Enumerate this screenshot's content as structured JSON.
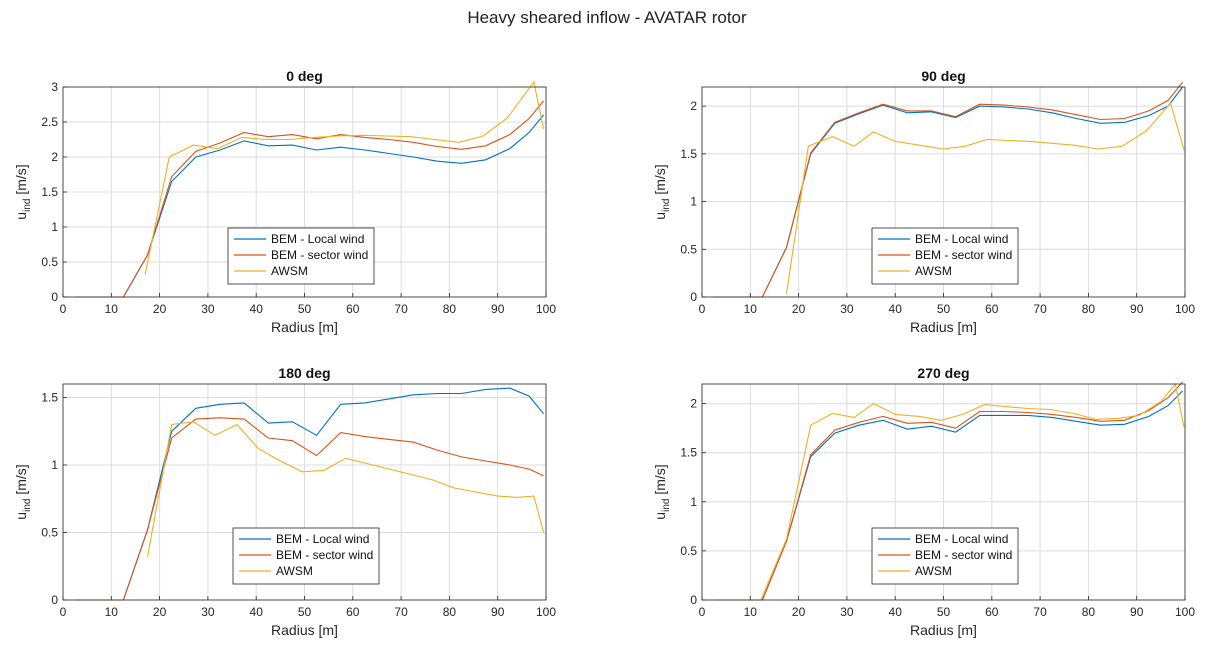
{
  "figure_title": "Heavy sheared inflow - AVATAR rotor",
  "colors": {
    "local": "#0072BD",
    "sector": "#D95319",
    "awsm": "#EDB120",
    "grid": "#dcdcdc",
    "axis": "#262626"
  },
  "chart_data": [
    {
      "type": "line",
      "title": "0 deg",
      "xlabel": "Radius [m]",
      "ylabel": "u",
      "ylabel_sub": "ind",
      "ylabel_unit": " [m/s]",
      "xlim": [
        0,
        100
      ],
      "ylim": [
        0,
        3
      ],
      "xticks": [
        0,
        10,
        20,
        30,
        40,
        50,
        60,
        70,
        80,
        90,
        100
      ],
      "yticks": [
        0,
        0.5,
        1,
        1.5,
        2,
        2.5,
        3
      ],
      "ytick_labels": [
        "0",
        "0.5",
        "1",
        "1.5",
        "2",
        "2.5",
        "3"
      ],
      "grid": true,
      "legend_position": "lower-center",
      "series": [
        {
          "name": "BEM - Local wind",
          "color": "#0072BD",
          "x": [
            2.5,
            7.5,
            12.5,
            17.5,
            22.5,
            27.5,
            32.5,
            37.5,
            42.5,
            47.5,
            52.5,
            57.5,
            62.5,
            67.5,
            72.5,
            77.5,
            82.5,
            87.5,
            92.5,
            96.5,
            99.5
          ],
          "y": [
            0,
            0,
            0,
            0.6,
            1.65,
            2.0,
            2.1,
            2.23,
            2.16,
            2.17,
            2.1,
            2.14,
            2.1,
            2.05,
            2.0,
            1.94,
            1.91,
            1.96,
            2.12,
            2.35,
            2.6
          ]
        },
        {
          "name": "BEM - sector wind",
          "color": "#D95319",
          "x": [
            2.5,
            7.5,
            12.5,
            17.5,
            22.5,
            27.5,
            32.5,
            37.5,
            42.5,
            47.5,
            52.5,
            57.5,
            62.5,
            67.5,
            72.5,
            77.5,
            82.5,
            87.5,
            92.5,
            96.5,
            99.5
          ],
          "y": [
            0,
            0,
            0,
            0.6,
            1.72,
            2.08,
            2.2,
            2.35,
            2.29,
            2.32,
            2.26,
            2.32,
            2.28,
            2.25,
            2.21,
            2.15,
            2.11,
            2.16,
            2.32,
            2.55,
            2.8
          ]
        },
        {
          "name": "AWSM",
          "color": "#EDB120",
          "x": [
            17,
            22,
            27,
            32,
            37,
            42,
            47,
            52,
            57,
            62,
            67,
            72,
            77,
            82,
            87,
            92,
            97.5,
            99.5
          ],
          "y": [
            0.32,
            2.0,
            2.17,
            2.12,
            2.28,
            2.25,
            2.25,
            2.28,
            2.3,
            2.31,
            2.3,
            2.29,
            2.25,
            2.21,
            2.3,
            2.56,
            3.07,
            2.4
          ]
        }
      ]
    },
    {
      "type": "line",
      "title": "90 deg",
      "xlabel": "Radius [m]",
      "ylabel": "u",
      "ylabel_sub": "ind",
      "ylabel_unit": " [m/s]",
      "xlim": [
        0,
        100
      ],
      "ylim": [
        0,
        2.2
      ],
      "xticks": [
        0,
        10,
        20,
        30,
        40,
        50,
        60,
        70,
        80,
        90,
        100
      ],
      "yticks": [
        0,
        0.5,
        1,
        1.5,
        2
      ],
      "ytick_labels": [
        "0",
        "0.5",
        "1",
        "1.5",
        "2"
      ],
      "grid": true,
      "legend_position": "lower-center",
      "series": [
        {
          "name": "BEM - Local wind",
          "color": "#0072BD",
          "x": [
            2.5,
            7.5,
            12.5,
            17.5,
            22.5,
            27.5,
            32.5,
            37.5,
            42.5,
            47.5,
            52.5,
            57.5,
            62.5,
            67.5,
            72.5,
            77.5,
            82.5,
            87.5,
            92.5,
            96.5,
            99.5
          ],
          "y": [
            0,
            0,
            0,
            0.52,
            1.5,
            1.82,
            1.92,
            2.01,
            1.93,
            1.94,
            1.88,
            2.0,
            1.99,
            1.97,
            1.93,
            1.87,
            1.82,
            1.83,
            1.9,
            2.0,
            2.2
          ]
        },
        {
          "name": "BEM - sector wind",
          "color": "#D95319",
          "x": [
            2.5,
            7.5,
            12.5,
            17.5,
            22.5,
            27.5,
            32.5,
            37.5,
            42.5,
            47.5,
            52.5,
            57.5,
            62.5,
            67.5,
            72.5,
            77.5,
            82.5,
            87.5,
            92.5,
            96.5,
            99.5
          ],
          "y": [
            0,
            0,
            0,
            0.52,
            1.51,
            1.83,
            1.93,
            2.02,
            1.95,
            1.95,
            1.89,
            2.02,
            2.01,
            1.99,
            1.96,
            1.91,
            1.86,
            1.87,
            1.95,
            2.06,
            2.25
          ]
        },
        {
          "name": "AWSM",
          "color": "#EDB120",
          "x": [
            17.5,
            22,
            27,
            31.5,
            35.5,
            40,
            45,
            50,
            54.5,
            59,
            63.5,
            68,
            72.5,
            77,
            82,
            87,
            92,
            97,
            99.8
          ],
          "y": [
            0.03,
            1.58,
            1.68,
            1.58,
            1.73,
            1.63,
            1.59,
            1.55,
            1.58,
            1.65,
            1.64,
            1.63,
            1.61,
            1.59,
            1.55,
            1.58,
            1.74,
            2.03,
            1.54
          ]
        }
      ]
    },
    {
      "type": "line",
      "title": "180 deg",
      "xlabel": "Radius [m]",
      "ylabel": "u",
      "ylabel_sub": "ind",
      "ylabel_unit": " [m/s]",
      "xlim": [
        0,
        100
      ],
      "ylim": [
        0,
        1.6
      ],
      "xticks": [
        0,
        10,
        20,
        30,
        40,
        50,
        60,
        70,
        80,
        90,
        100
      ],
      "yticks": [
        0,
        0.5,
        1,
        1.5
      ],
      "ytick_labels": [
        "0",
        "0.5",
        "1",
        "1.5"
      ],
      "grid": true,
      "legend_position": "lower-center",
      "series": [
        {
          "name": "BEM - Local wind",
          "color": "#0072BD",
          "x": [
            2.5,
            7.5,
            12.5,
            17.5,
            22.5,
            27.5,
            32.5,
            37.5,
            42.5,
            47.5,
            52.5,
            57.5,
            62.5,
            67.5,
            72.5,
            77.5,
            82.5,
            87.5,
            92.5,
            96.5,
            99.5
          ],
          "y": [
            0,
            0,
            0,
            0.52,
            1.25,
            1.42,
            1.45,
            1.46,
            1.31,
            1.32,
            1.22,
            1.45,
            1.46,
            1.49,
            1.52,
            1.53,
            1.53,
            1.56,
            1.57,
            1.51,
            1.38
          ]
        },
        {
          "name": "BEM - sector wind",
          "color": "#D95319",
          "x": [
            2.5,
            7.5,
            12.5,
            17.5,
            22.5,
            27.5,
            32.5,
            37.5,
            42.5,
            47.5,
            52.5,
            57.5,
            62.5,
            67.5,
            72.5,
            77.5,
            82.5,
            87.5,
            92.5,
            96.5,
            99.5
          ],
          "y": [
            0,
            0,
            0,
            0.52,
            1.2,
            1.34,
            1.35,
            1.34,
            1.2,
            1.18,
            1.07,
            1.24,
            1.21,
            1.19,
            1.17,
            1.11,
            1.06,
            1.03,
            1.0,
            0.97,
            0.92
          ]
        },
        {
          "name": "AWSM",
          "color": "#EDB120",
          "x": [
            17.5,
            22.5,
            27,
            31.5,
            36,
            40.5,
            45,
            49.5,
            54,
            58.5,
            63,
            67.5,
            72,
            76.5,
            81,
            85.5,
            90,
            94,
            97.5,
            99.5
          ],
          "y": [
            0.32,
            1.3,
            1.32,
            1.22,
            1.3,
            1.12,
            1.03,
            0.95,
            0.96,
            1.05,
            1.01,
            0.97,
            0.93,
            0.89,
            0.83,
            0.8,
            0.77,
            0.76,
            0.77,
            0.5
          ]
        }
      ]
    },
    {
      "type": "line",
      "title": "270 deg",
      "xlabel": "Radius [m]",
      "ylabel": "u",
      "ylabel_sub": "ind",
      "ylabel_unit": " [m/s]",
      "xlim": [
        0,
        100
      ],
      "ylim": [
        0,
        2.2
      ],
      "xticks": [
        0,
        10,
        20,
        30,
        40,
        50,
        60,
        70,
        80,
        90,
        100
      ],
      "yticks": [
        0,
        0.5,
        1,
        1.5,
        2
      ],
      "ytick_labels": [
        "0",
        "0.5",
        "1",
        "1.5",
        "2"
      ],
      "grid": true,
      "legend_position": "lower-center",
      "series": [
        {
          "name": "BEM - Local wind",
          "color": "#0072BD",
          "x": [
            2.5,
            7.5,
            12.5,
            17.5,
            22.5,
            27.5,
            32.5,
            37.5,
            42.5,
            47.5,
            52.5,
            57.5,
            62.5,
            67.5,
            72.5,
            77.5,
            82.5,
            87.5,
            92.5,
            96.5,
            99.5
          ],
          "y": [
            0,
            0,
            0,
            0.6,
            1.46,
            1.7,
            1.78,
            1.83,
            1.74,
            1.77,
            1.71,
            1.88,
            1.88,
            1.88,
            1.86,
            1.82,
            1.78,
            1.79,
            1.87,
            1.98,
            2.13
          ]
        },
        {
          "name": "BEM - sector wind",
          "color": "#D95319",
          "x": [
            2.5,
            7.5,
            12.5,
            17.5,
            22.5,
            27.5,
            32.5,
            37.5,
            42.5,
            47.5,
            52.5,
            57.5,
            62.5,
            67.5,
            72.5,
            77.5,
            82.5,
            87.5,
            92.5,
            96.5,
            99.5
          ],
          "y": [
            0,
            0,
            0,
            0.6,
            1.48,
            1.73,
            1.81,
            1.87,
            1.8,
            1.81,
            1.75,
            1.92,
            1.92,
            1.91,
            1.89,
            1.86,
            1.82,
            1.83,
            1.93,
            2.06,
            2.22
          ]
        },
        {
          "name": "AWSM",
          "color": "#EDB120",
          "x": [
            12.2,
            17.5,
            22.5,
            27,
            31.5,
            35.5,
            40,
            45,
            49.5,
            54,
            58.5,
            63,
            67.5,
            72,
            77,
            81.5,
            86,
            90.5,
            95,
            98,
            99.8
          ],
          "y": [
            0,
            0.62,
            1.78,
            1.9,
            1.86,
            2.0,
            1.89,
            1.87,
            1.83,
            1.89,
            1.99,
            1.97,
            1.95,
            1.94,
            1.9,
            1.84,
            1.85,
            1.88,
            2.02,
            2.2,
            1.76
          ]
        }
      ]
    }
  ]
}
